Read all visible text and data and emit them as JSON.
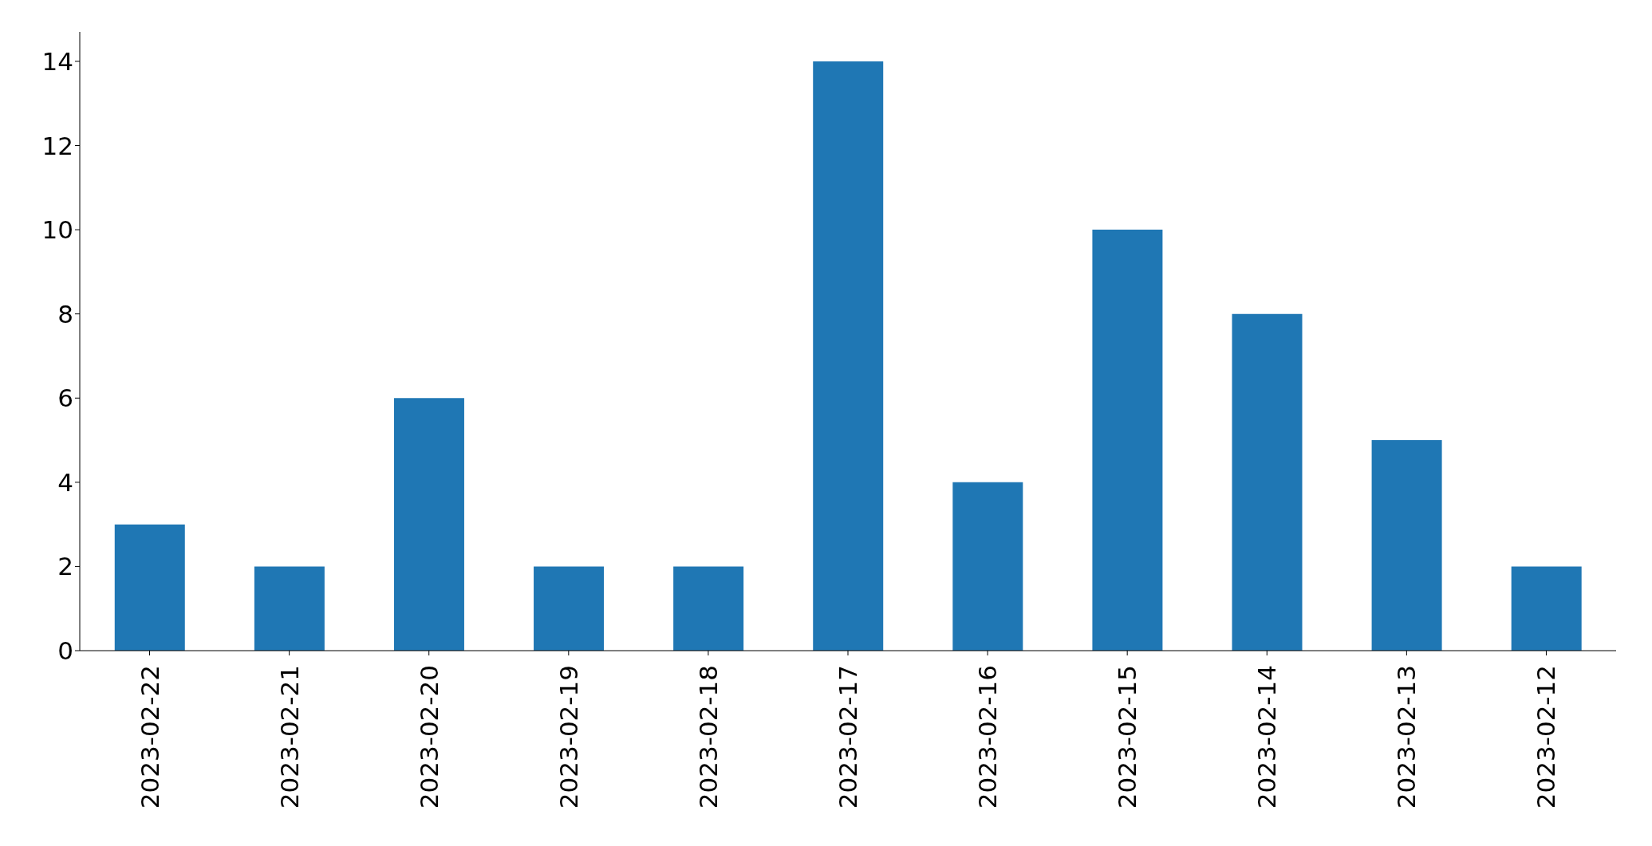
{
  "chart_data": {
    "type": "bar",
    "categories": [
      "2023-02-22",
      "2023-02-21",
      "2023-02-20",
      "2023-02-19",
      "2023-02-18",
      "2023-02-17",
      "2023-02-16",
      "2023-02-15",
      "2023-02-14",
      "2023-02-13",
      "2023-02-12"
    ],
    "values": [
      3,
      2,
      6,
      2,
      2,
      14,
      4,
      10,
      8,
      5,
      2
    ],
    "color": "#1f77b4",
    "ylim": [
      0,
      14.7
    ],
    "yticks": [
      0,
      2,
      4,
      6,
      8,
      10,
      12,
      14
    ]
  }
}
